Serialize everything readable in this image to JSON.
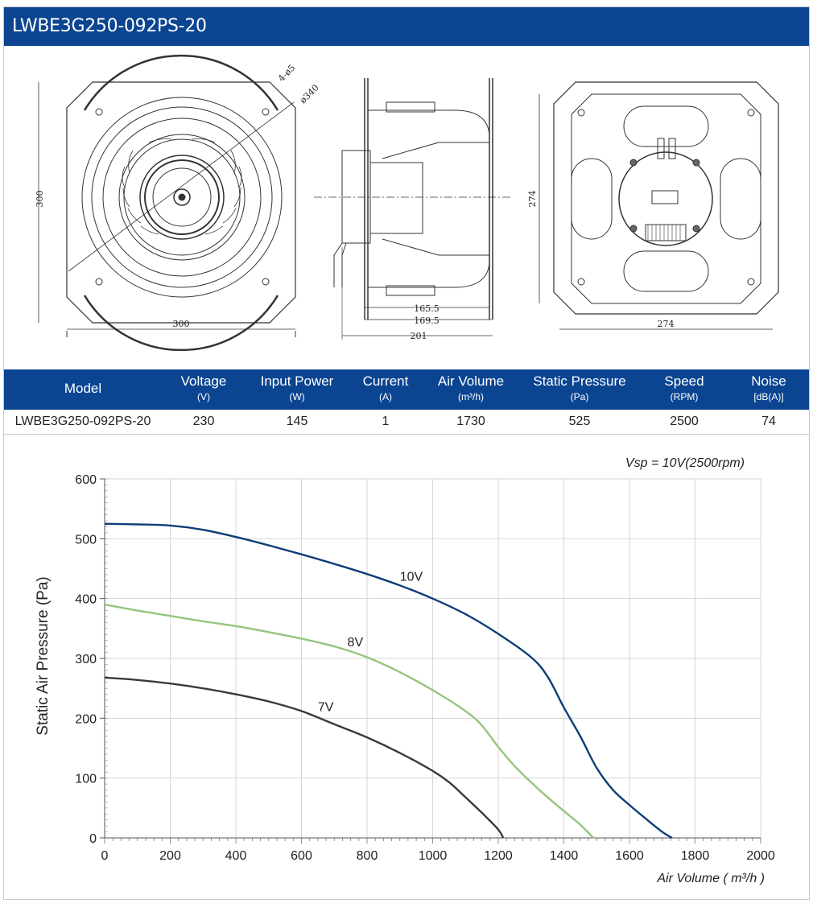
{
  "title": "LWBE3G250-092PS-20",
  "drawings": {
    "front": {
      "width_label": "300",
      "height_label": "300",
      "holes_label": "4-ø5",
      "bolt_circle_label": "ø340"
    },
    "side": {
      "dim1": "165.5",
      "dim2": "169.5",
      "dim3": "201"
    },
    "back": {
      "width_label": "274",
      "height_label": "274"
    }
  },
  "spec_table": {
    "headers": [
      {
        "name": "Model",
        "unit": ""
      },
      {
        "name": "Voltage",
        "unit": "(V)"
      },
      {
        "name": "Input Power",
        "unit": "(W)"
      },
      {
        "name": "Current",
        "unit": "(A)"
      },
      {
        "name": "Air Volume",
        "unit": "(m³/h)"
      },
      {
        "name": "Static Pressure",
        "unit": "(Pa)"
      },
      {
        "name": "Speed",
        "unit": "(RPM)"
      },
      {
        "name": "Noise",
        "unit": "[dB(A)]"
      }
    ],
    "row": [
      "LWBE3G250-092PS-20",
      "230",
      "145",
      "1",
      "1730",
      "525",
      "2500",
      "74"
    ]
  },
  "colors": {
    "header_blue": "#0b4591",
    "curve_10v": "#0e3e78",
    "curve_8v": "#95c47e",
    "curve_7v": "#3a3a3a"
  },
  "chart_data": {
    "type": "line",
    "annotation": "Vsp = 10V(2500rpm)",
    "xlabel": "Air Volume ( m³/h )",
    "ylabel": "Static Air Pressure  (Pa)",
    "xlim": [
      0,
      2000
    ],
    "ylim": [
      0,
      600
    ],
    "xticks": [
      0,
      200,
      400,
      600,
      800,
      1000,
      1200,
      1400,
      1600,
      1800,
      2000
    ],
    "yticks": [
      0,
      100,
      200,
      300,
      400,
      500,
      600
    ],
    "grid": true,
    "series": [
      {
        "name": "10V",
        "label_at": [
          900,
          430
        ],
        "points": [
          [
            0,
            525
          ],
          [
            100,
            524
          ],
          [
            200,
            522
          ],
          [
            300,
            515
          ],
          [
            400,
            503
          ],
          [
            500,
            489
          ],
          [
            600,
            474
          ],
          [
            700,
            458
          ],
          [
            800,
            441
          ],
          [
            900,
            422
          ],
          [
            1000,
            400
          ],
          [
            1100,
            374
          ],
          [
            1200,
            341
          ],
          [
            1300,
            302
          ],
          [
            1350,
            270
          ],
          [
            1400,
            218
          ],
          [
            1450,
            170
          ],
          [
            1500,
            117
          ],
          [
            1550,
            80
          ],
          [
            1600,
            55
          ],
          [
            1650,
            32
          ],
          [
            1700,
            10
          ],
          [
            1730,
            0
          ]
        ]
      },
      {
        "name": "8V",
        "label_at": [
          740,
          320
        ],
        "points": [
          [
            0,
            390
          ],
          [
            100,
            380
          ],
          [
            200,
            371
          ],
          [
            300,
            362
          ],
          [
            400,
            354
          ],
          [
            500,
            344
          ],
          [
            600,
            333
          ],
          [
            700,
            320
          ],
          [
            800,
            302
          ],
          [
            900,
            277
          ],
          [
            1000,
            247
          ],
          [
            1100,
            212
          ],
          [
            1150,
            188
          ],
          [
            1200,
            152
          ],
          [
            1250,
            120
          ],
          [
            1300,
            93
          ],
          [
            1350,
            68
          ],
          [
            1400,
            45
          ],
          [
            1450,
            22
          ],
          [
            1490,
            0
          ]
        ]
      },
      {
        "name": "7V",
        "label_at": [
          650,
          212
        ],
        "points": [
          [
            0,
            268
          ],
          [
            100,
            264
          ],
          [
            200,
            258
          ],
          [
            300,
            250
          ],
          [
            400,
            240
          ],
          [
            500,
            228
          ],
          [
            600,
            212
          ],
          [
            700,
            190
          ],
          [
            800,
            168
          ],
          [
            900,
            142
          ],
          [
            1000,
            112
          ],
          [
            1050,
            93
          ],
          [
            1100,
            68
          ],
          [
            1150,
            42
          ],
          [
            1200,
            14
          ],
          [
            1215,
            0
          ]
        ]
      }
    ]
  }
}
